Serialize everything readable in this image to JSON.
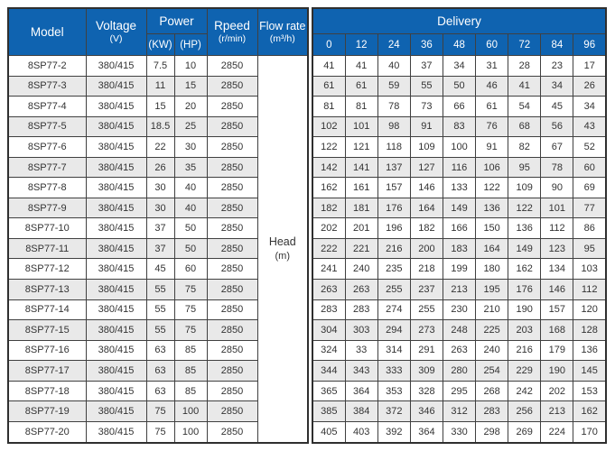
{
  "table": {
    "header": {
      "model": "Model",
      "voltage": "Voltage",
      "voltage_unit": "(V)",
      "power": "Power",
      "power_kw": "(KW)",
      "power_hp": "(HP)",
      "speed": "Rpeed",
      "speed_unit": "(r/min)",
      "flow_rate": "Flow rate",
      "flow_rate_unit": "(m³/h)",
      "delivery": "Delivery",
      "delivery_flows": [
        "0",
        "12",
        "24",
        "36",
        "48",
        "60",
        "72",
        "84",
        "96"
      ]
    },
    "head_cell": {
      "label": "Head",
      "unit": "(m)"
    },
    "rows": [
      {
        "model": "8SP77-2",
        "voltage": "380/415",
        "kw": "7.5",
        "hp": "10",
        "speed": "2850",
        "heads": [
          "41",
          "41",
          "40",
          "37",
          "34",
          "31",
          "28",
          "23",
          "17"
        ]
      },
      {
        "model": "8SP77-3",
        "voltage": "380/415",
        "kw": "11",
        "hp": "15",
        "speed": "2850",
        "heads": [
          "61",
          "61",
          "59",
          "55",
          "50",
          "46",
          "41",
          "34",
          "26"
        ]
      },
      {
        "model": "8SP77-4",
        "voltage": "380/415",
        "kw": "15",
        "hp": "20",
        "speed": "2850",
        "heads": [
          "81",
          "81",
          "78",
          "73",
          "66",
          "61",
          "54",
          "45",
          "34"
        ]
      },
      {
        "model": "8SP77-5",
        "voltage": "380/415",
        "kw": "18.5",
        "hp": "25",
        "speed": "2850",
        "heads": [
          "102",
          "101",
          "98",
          "91",
          "83",
          "76",
          "68",
          "56",
          "43"
        ]
      },
      {
        "model": "8SP77-6",
        "voltage": "380/415",
        "kw": "22",
        "hp": "30",
        "speed": "2850",
        "heads": [
          "122",
          "121",
          "118",
          "109",
          "100",
          "91",
          "82",
          "67",
          "52"
        ]
      },
      {
        "model": "8SP77-7",
        "voltage": "380/415",
        "kw": "26",
        "hp": "35",
        "speed": "2850",
        "heads": [
          "142",
          "141",
          "137",
          "127",
          "116",
          "106",
          "95",
          "78",
          "60"
        ]
      },
      {
        "model": "8SP77-8",
        "voltage": "380/415",
        "kw": "30",
        "hp": "40",
        "speed": "2850",
        "heads": [
          "162",
          "161",
          "157",
          "146",
          "133",
          "122",
          "109",
          "90",
          "69"
        ]
      },
      {
        "model": "8SP77-9",
        "voltage": "380/415",
        "kw": "30",
        "hp": "40",
        "speed": "2850",
        "heads": [
          "182",
          "181",
          "176",
          "164",
          "149",
          "136",
          "122",
          "101",
          "77"
        ]
      },
      {
        "model": "8SP77-10",
        "voltage": "380/415",
        "kw": "37",
        "hp": "50",
        "speed": "2850",
        "heads": [
          "202",
          "201",
          "196",
          "182",
          "166",
          "150",
          "136",
          "112",
          "86"
        ]
      },
      {
        "model": "8SP77-11",
        "voltage": "380/415",
        "kw": "37",
        "hp": "50",
        "speed": "2850",
        "heads": [
          "222",
          "221",
          "216",
          "200",
          "183",
          "164",
          "149",
          "123",
          "95"
        ]
      },
      {
        "model": "8SP77-12",
        "voltage": "380/415",
        "kw": "45",
        "hp": "60",
        "speed": "2850",
        "heads": [
          "241",
          "240",
          "235",
          "218",
          "199",
          "180",
          "162",
          "134",
          "103"
        ]
      },
      {
        "model": "8SP77-13",
        "voltage": "380/415",
        "kw": "55",
        "hp": "75",
        "speed": "2850",
        "heads": [
          "263",
          "263",
          "255",
          "237",
          "213",
          "195",
          "176",
          "146",
          "112"
        ]
      },
      {
        "model": "8SP77-14",
        "voltage": "380/415",
        "kw": "55",
        "hp": "75",
        "speed": "2850",
        "heads": [
          "283",
          "283",
          "274",
          "255",
          "230",
          "210",
          "190",
          "157",
          "120"
        ]
      },
      {
        "model": "8SP77-15",
        "voltage": "380/415",
        "kw": "55",
        "hp": "75",
        "speed": "2850",
        "heads": [
          "304",
          "303",
          "294",
          "273",
          "248",
          "225",
          "203",
          "168",
          "128"
        ]
      },
      {
        "model": "8SP77-16",
        "voltage": "380/415",
        "kw": "63",
        "hp": "85",
        "speed": "2850",
        "heads": [
          "324",
          "33",
          "314",
          "291",
          "263",
          "240",
          "216",
          "179",
          "136"
        ]
      },
      {
        "model": "8SP77-17",
        "voltage": "380/415",
        "kw": "63",
        "hp": "85",
        "speed": "2850",
        "heads": [
          "344",
          "343",
          "333",
          "309",
          "280",
          "254",
          "229",
          "190",
          "145"
        ]
      },
      {
        "model": "8SP77-18",
        "voltage": "380/415",
        "kw": "63",
        "hp": "85",
        "speed": "2850",
        "heads": [
          "365",
          "364",
          "353",
          "328",
          "295",
          "268",
          "242",
          "202",
          "153"
        ]
      },
      {
        "model": "8SP77-19",
        "voltage": "380/415",
        "kw": "75",
        "hp": "100",
        "speed": "2850",
        "heads": [
          "385",
          "384",
          "372",
          "346",
          "312",
          "283",
          "256",
          "213",
          "162"
        ]
      },
      {
        "model": "8SP77-20",
        "voltage": "380/415",
        "kw": "75",
        "hp": "100",
        "speed": "2850",
        "heads": [
          "405",
          "403",
          "392",
          "364",
          "330",
          "298",
          "269",
          "224",
          "170"
        ]
      }
    ]
  },
  "colors": {
    "header_bg": "#0f63b0",
    "header_text": "#ffffff",
    "row_stripe": "#e9e9e9",
    "grid_border": "#404040",
    "body_text": "#333333"
  }
}
